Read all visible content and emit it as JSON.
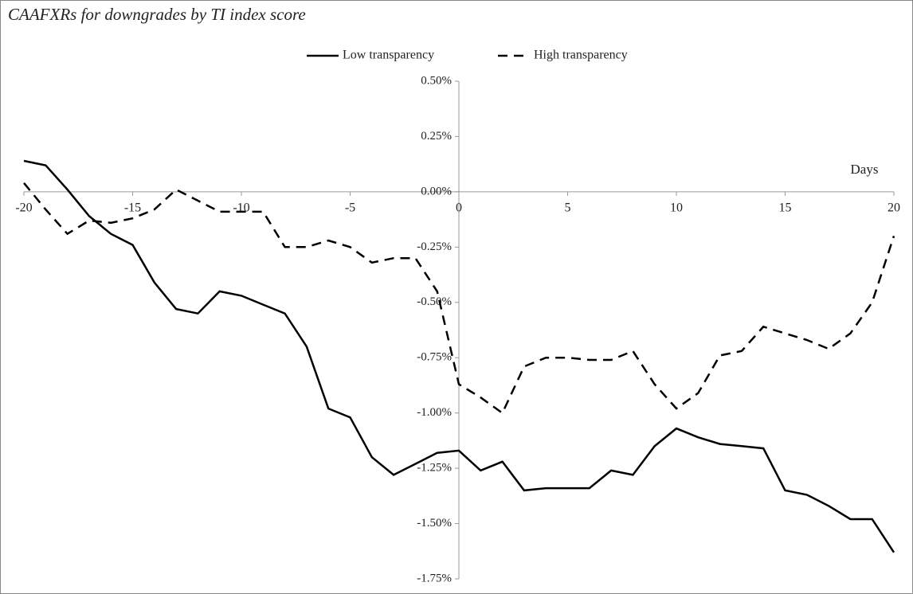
{
  "chart_data": {
    "type": "line",
    "title": "CAAFXRs for downgrades by TI index score",
    "x_label": "Days",
    "x": [
      -20,
      -19,
      -18,
      -17,
      -16,
      -15,
      -14,
      -13,
      -12,
      -11,
      -10,
      -9,
      -8,
      -7,
      -6,
      -5,
      -4,
      -3,
      -2,
      -1,
      0,
      1,
      2,
      3,
      4,
      5,
      6,
      7,
      8,
      9,
      10,
      11,
      12,
      13,
      14,
      15,
      16,
      17,
      18,
      19,
      20
    ],
    "series": [
      {
        "name": "Low transparency",
        "color": "#000000",
        "style": "solid",
        "values": [
          0.14,
          0.12,
          0.01,
          -0.11,
          -0.19,
          -0.24,
          -0.41,
          -0.53,
          -0.55,
          -0.45,
          -0.47,
          -0.51,
          -0.55,
          -0.7,
          -0.98,
          -1.02,
          -1.2,
          -1.28,
          -1.23,
          -1.18,
          -1.17,
          -1.26,
          -1.22,
          -1.35,
          -1.34,
          -1.34,
          -1.34,
          -1.26,
          -1.28,
          -1.15,
          -1.07,
          -1.11,
          -1.14,
          -1.15,
          -1.16,
          -1.35,
          -1.37,
          -1.42,
          -1.48,
          -1.48,
          -1.63
        ]
      },
      {
        "name": "High transparency",
        "color": "#000000",
        "style": "dashed",
        "values": [
          0.04,
          -0.08,
          -0.19,
          -0.13,
          -0.14,
          -0.12,
          -0.08,
          0.01,
          -0.04,
          -0.09,
          -0.09,
          -0.09,
          -0.25,
          -0.25,
          -0.22,
          -0.25,
          -0.32,
          -0.3,
          -0.3,
          -0.45,
          -0.87,
          -0.93,
          -1.0,
          -0.79,
          -0.75,
          -0.75,
          -0.76,
          -0.76,
          -0.72,
          -0.87,
          -0.98,
          -0.91,
          -0.74,
          -0.72,
          -0.61,
          -0.64,
          -0.67,
          -0.71,
          -0.64,
          -0.5,
          -0.2
        ]
      }
    ],
    "xlim": [
      -20,
      20
    ],
    "xticks": [
      -20,
      -15,
      -10,
      -5,
      0,
      5,
      10,
      15,
      20
    ],
    "ylim": [
      -1.75,
      0.5
    ],
    "yticks": [
      {
        "value": 0.5,
        "label": "0.50%"
      },
      {
        "value": 0.25,
        "label": "0.25%"
      },
      {
        "value": 0,
        "label": "0.00%"
      },
      {
        "value": -0.25,
        "label": "-0.25%"
      },
      {
        "value": -0.5,
        "label": "-0.50%"
      },
      {
        "value": -0.75,
        "label": "-0.75%"
      },
      {
        "value": -1,
        "label": "-1.00%"
      },
      {
        "value": -1.25,
        "label": "-1.25%"
      },
      {
        "value": -1.5,
        "label": "-1.50%"
      },
      {
        "value": -1.75,
        "label": "-1.75%"
      }
    ],
    "legend": "top"
  }
}
